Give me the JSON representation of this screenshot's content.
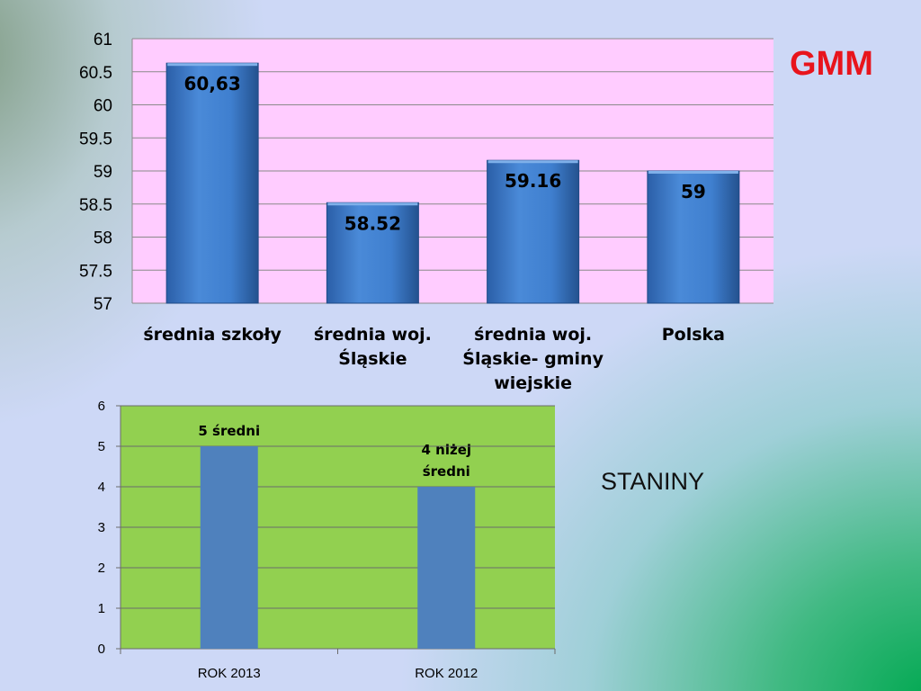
{
  "header": {
    "brand": "GMM"
  },
  "side_label": "STANINY",
  "colors": {
    "plot1_bg": "#ffccff",
    "bar1": "#3a78c8",
    "plot2_bg": "#92d050",
    "bar2": "#4f81bd"
  },
  "chart_data": [
    {
      "type": "bar",
      "categories": [
        "średnia szkoły",
        "średnia woj. Śląskie",
        "średnia woj. Śląskie- gminy wiejskie",
        "Polska"
      ],
      "category_lines": [
        [
          "średnia szkoły"
        ],
        [
          "średnia woj.",
          "Śląskie"
        ],
        [
          "średnia woj.",
          "Śląskie- gminy",
          "wiejskie"
        ],
        [
          "Polska"
        ]
      ],
      "values": [
        60.63,
        58.52,
        59.16,
        59
      ],
      "data_labels": [
        "60,63",
        "58.52",
        "59.16",
        "59"
      ],
      "ylim": [
        57,
        61
      ],
      "yticks": [
        "57",
        "57.5",
        "58",
        "58.5",
        "59",
        "59.5",
        "60",
        "60.5",
        "61"
      ],
      "ytick_values": [
        57,
        57.5,
        58,
        58.5,
        59,
        59.5,
        60,
        60.5,
        61
      ],
      "grid": true
    },
    {
      "type": "bar",
      "categories": [
        "ROK 2013",
        "ROK 2012"
      ],
      "values": [
        5,
        4
      ],
      "data_labels": [
        [
          "5  średni"
        ],
        [
          "4 niżej",
          "średni"
        ]
      ],
      "ylim": [
        0,
        6
      ],
      "yticks": [
        "0",
        "1",
        "2",
        "3",
        "4",
        "5",
        "6"
      ],
      "ytick_values": [
        0,
        1,
        2,
        3,
        4,
        5,
        6
      ],
      "grid": true
    }
  ]
}
